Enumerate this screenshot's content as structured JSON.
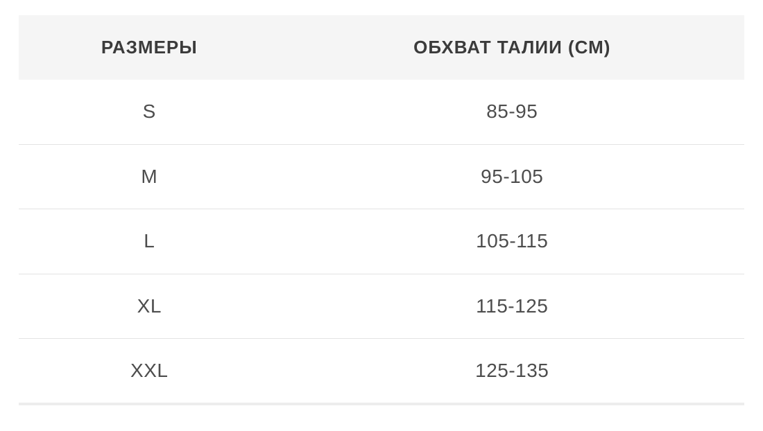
{
  "table": {
    "columns": [
      {
        "label": "РАЗМЕРЫ"
      },
      {
        "label": "ОБХВАТ ТАЛИИ (СМ)"
      }
    ],
    "rows": [
      {
        "size": "S",
        "waist": "85-95"
      },
      {
        "size": "M",
        "waist": "95-105"
      },
      {
        "size": "L",
        "waist": "105-115"
      },
      {
        "size": "XL",
        "waist": "115-125"
      },
      {
        "size": "XXL",
        "waist": "125-135"
      }
    ]
  },
  "colors": {
    "header_bg": "#f5f5f5",
    "divider": "#e3e3e3",
    "header_text": "#3b3b3b",
    "cell_text": "#4d4d4d",
    "page_bg": "#ffffff"
  }
}
